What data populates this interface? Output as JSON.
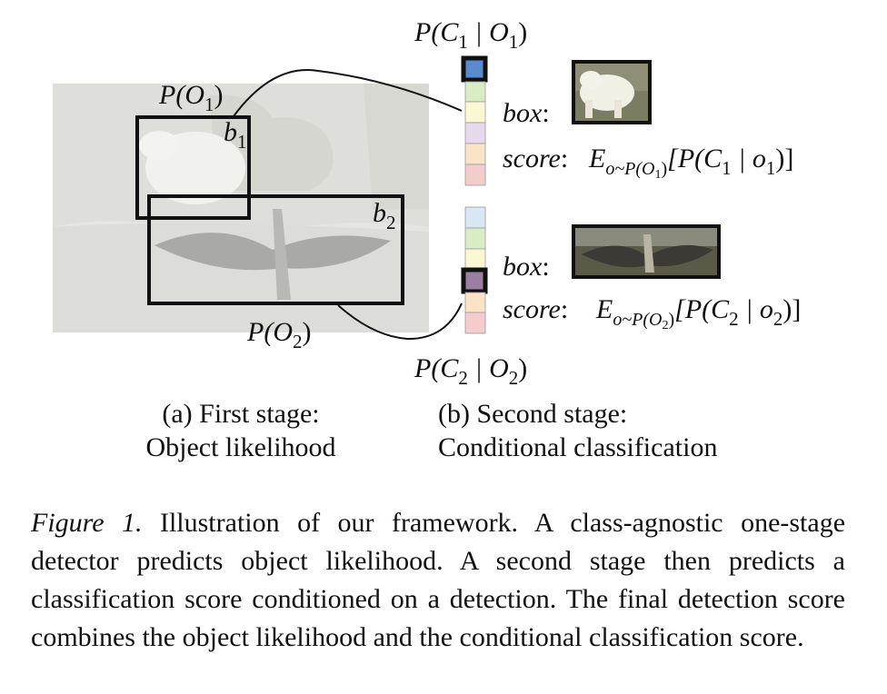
{
  "stage1": {
    "box1_label": "b",
    "box1_sub": "1",
    "box2_label": "b",
    "box2_sub": "2",
    "p_o1": "P(O",
    "p_o1_sub": "1",
    "p_o2": "P(O",
    "p_o2_sub": "2"
  },
  "stage2": {
    "top_prob_label": "P(C",
    "top_prob_sub1": "1",
    "top_prob_mid": " | O",
    "top_prob_sub2": "1",
    "bottom_prob_label": "P(C",
    "bottom_prob_sub1": "2",
    "bottom_prob_mid": " | O",
    "bottom_prob_sub2": "2",
    "box_label": "box",
    "score_label": "score",
    "score1_E": "E",
    "score1_E_sub": "o~P(O",
    "score1_E_subsub": "1",
    "score1_body": "[P(C",
    "score1_body_sub": "1",
    "score1_tail": " | o",
    "score1_tail_sub": "1",
    "score2_E": "E",
    "score2_E_sub": "o~P(O",
    "score2_E_subsub": "2",
    "score2_body": "[P(C",
    "score2_body_sub": "2",
    "score2_tail": " | o",
    "score2_tail_sub": "2"
  },
  "colors": {
    "upper_vector": [
      "#5b8bcf",
      "#d9ecc4",
      "#fbf7d2",
      "#e6d9ec",
      "#fbe3c8",
      "#f4cccc"
    ],
    "lower_vector": [
      "#d9e6f4",
      "#d9ecc4",
      "#fbf7d2",
      "#9b7fa1",
      "#fbe3c8",
      "#f4cccc"
    ]
  },
  "subcaption_a": [
    "(a) First stage:",
    "Object likelihood"
  ],
  "subcaption_b": [
    "(b) Second stage:",
    "Conditional classification"
  ],
  "caption": {
    "label": "Figure 1.",
    "text": "Illustration of our framework. A class-agnostic one-stage detector predicts object likelihood. A second stage then predicts a classification score conditioned on a detection. The final detection score combines the object likelihood and the conditional classification score."
  }
}
